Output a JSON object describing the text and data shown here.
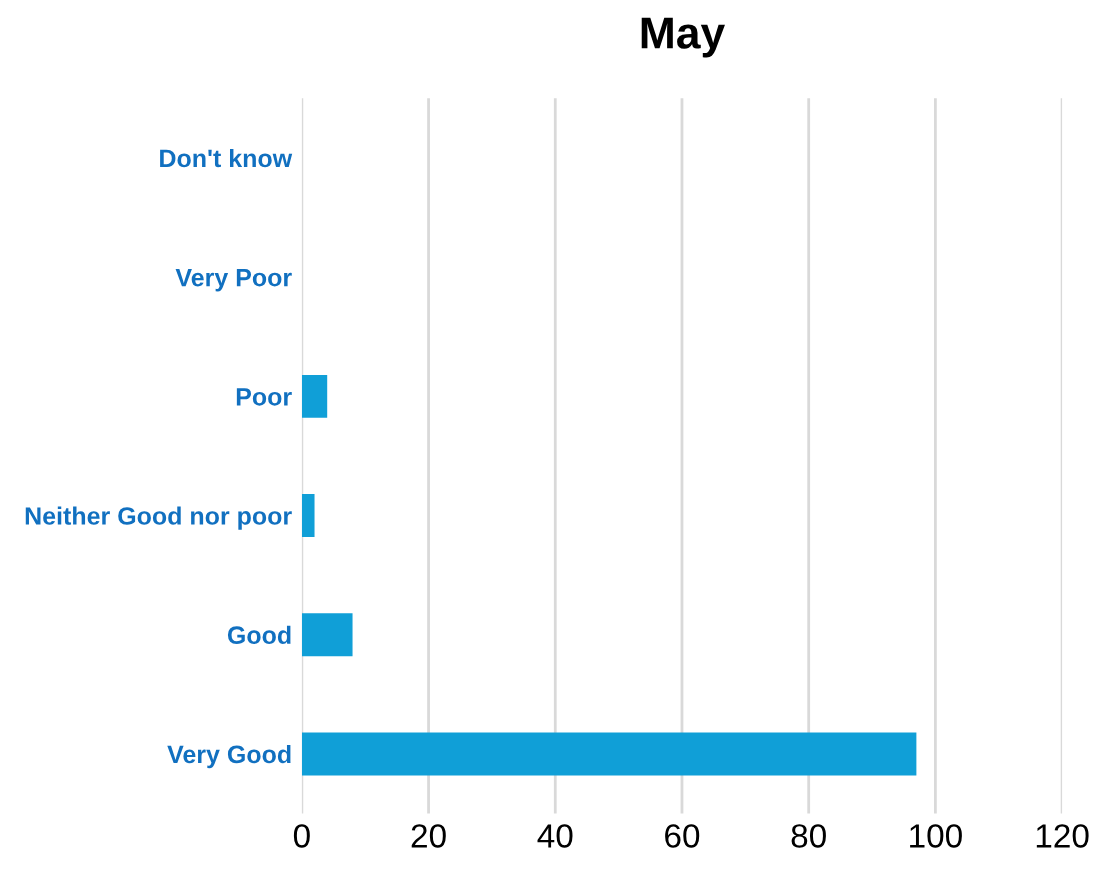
{
  "chart_data": {
    "type": "bar",
    "orientation": "horizontal",
    "title": "May",
    "categories": [
      "Don't know",
      "Very Poor",
      "Poor",
      "Neither Good nor poor",
      "Good",
      "Very Good"
    ],
    "values": [
      0,
      0,
      4,
      2,
      8,
      97
    ],
    "color": "#109fd7",
    "xlim": [
      0,
      120
    ],
    "xticks": [
      0,
      20,
      40,
      60,
      80,
      100,
      120
    ],
    "grid": "x",
    "legend": false
  }
}
